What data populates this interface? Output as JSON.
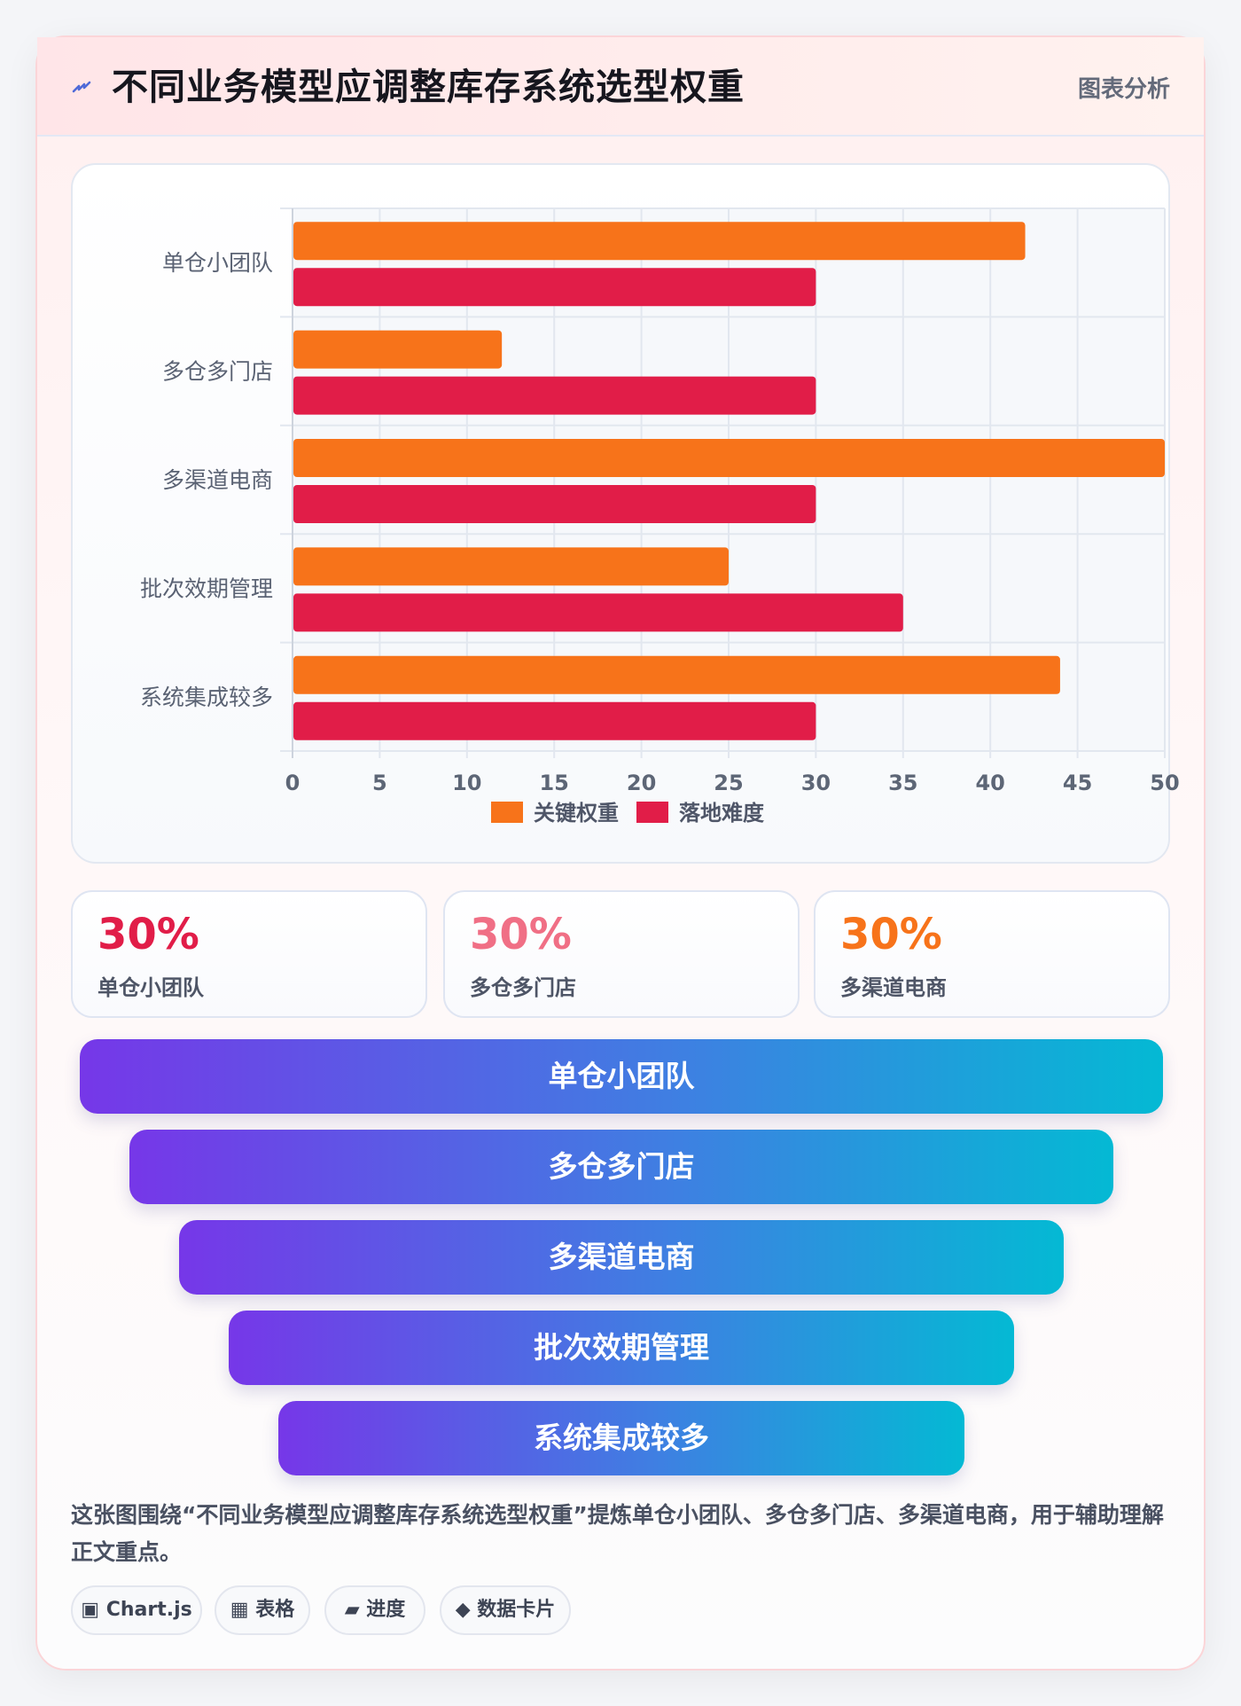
{
  "header": {
    "title": "不同业务模型应调整库存系统选型权重",
    "tag": "图表分析",
    "icon": "lightning-icon"
  },
  "chart_data": {
    "type": "bar",
    "orientation": "horizontal",
    "categories": [
      "单仓小团队",
      "多仓多门店",
      "多渠道电商",
      "批次效期管理",
      "系统集成较多"
    ],
    "series": [
      {
        "name": "关键权重",
        "values": [
          42,
          12,
          50,
          25,
          44
        ],
        "color": "#f7731a"
      },
      {
        "name": "落地难度",
        "values": [
          30,
          30,
          30,
          35,
          30
        ],
        "color": "#e11d48"
      }
    ],
    "xticks": [
      "0",
      "5",
      "10",
      "15",
      "20",
      "25",
      "30",
      "35",
      "40",
      "45",
      "50"
    ],
    "xlim": [
      0,
      50
    ],
    "grid": true,
    "legend_position": "bottom"
  },
  "stats": [
    {
      "value": "30%",
      "label": "单仓小团队",
      "color": "#e11d48"
    },
    {
      "value": "30%",
      "label": "多仓多门店",
      "color": "#f06f85"
    },
    {
      "value": "30%",
      "label": "多渠道电商",
      "color": "#f7731a"
    }
  ],
  "funnel": [
    "单仓小团队",
    "多仓多门店",
    "多渠道电商",
    "批次效期管理",
    "系统集成较多"
  ],
  "description": "这张图围绕“不同业务模型应调整库存系统选型权重”提炼单仓小团队、多仓多门店、多渠道电商，用于辅助理解正文重点。",
  "chips": [
    {
      "icon": "▣",
      "label": "Chart.js"
    },
    {
      "icon": "▦",
      "label": "表格"
    },
    {
      "icon": "▰",
      "label": "进度"
    },
    {
      "icon": "◆",
      "label": "数据卡片"
    }
  ]
}
